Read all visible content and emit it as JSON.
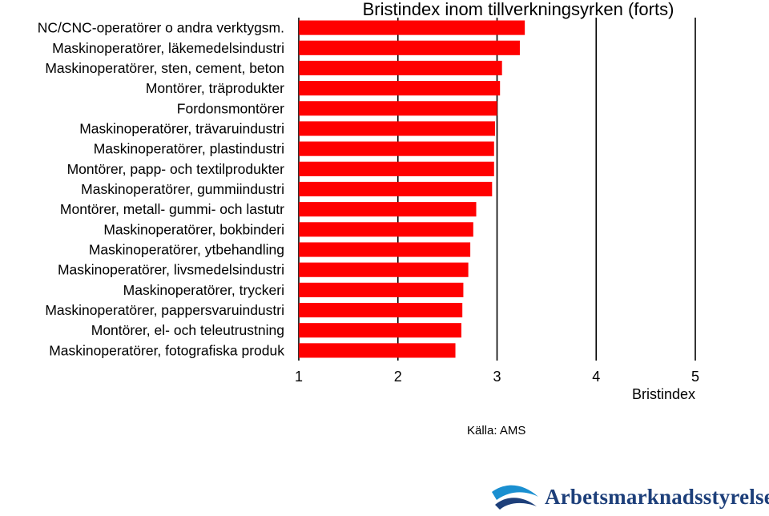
{
  "chart_data": {
    "type": "bar",
    "orientation": "horizontal",
    "title": "Bristindex inom tillverkningsyrken (forts)",
    "xlabel": "Bristindex",
    "ylabel": "",
    "xlim": [
      1,
      5
    ],
    "xticks": [
      "1",
      "2",
      "3",
      "4",
      "5"
    ],
    "grid": "vertical",
    "bar_color": "#ff0000",
    "categories": [
      "NC/CNC-operatörer o andra verktygsm.",
      "Maskinoperatörer, läkemedelsindustri",
      "Maskinoperatörer, sten, cement, beton",
      "Montörer, träprodukter",
      "Fordonsmontörer",
      "Maskinoperatörer, trävaruindustri",
      "Maskinoperatörer, plastindustri",
      "Montörer, papp- och textilprodukter",
      "Maskinoperatörer, gummiindustri",
      "Montörer, metall- gummi- och lastutr",
      "Maskinoperatörer, bokbinderi",
      "Maskinoperatörer, ytbehandling",
      "Maskinoperatörer, livsmedelsindustri",
      "Maskinoperatörer, tryckeri",
      "Maskinoperatörer, pappersvaruindustri",
      "Montörer, el- och teleutrustning",
      "Maskinoperatörer, fotografiska produk"
    ],
    "values": [
      3.28,
      3.23,
      3.05,
      3.03,
      3.0,
      2.98,
      2.97,
      2.97,
      2.95,
      2.79,
      2.76,
      2.73,
      2.71,
      2.66,
      2.65,
      2.64,
      2.58
    ]
  },
  "source": "Källa: AMS",
  "logo": {
    "text": "Arbetsmarknadsstyrelsen"
  }
}
